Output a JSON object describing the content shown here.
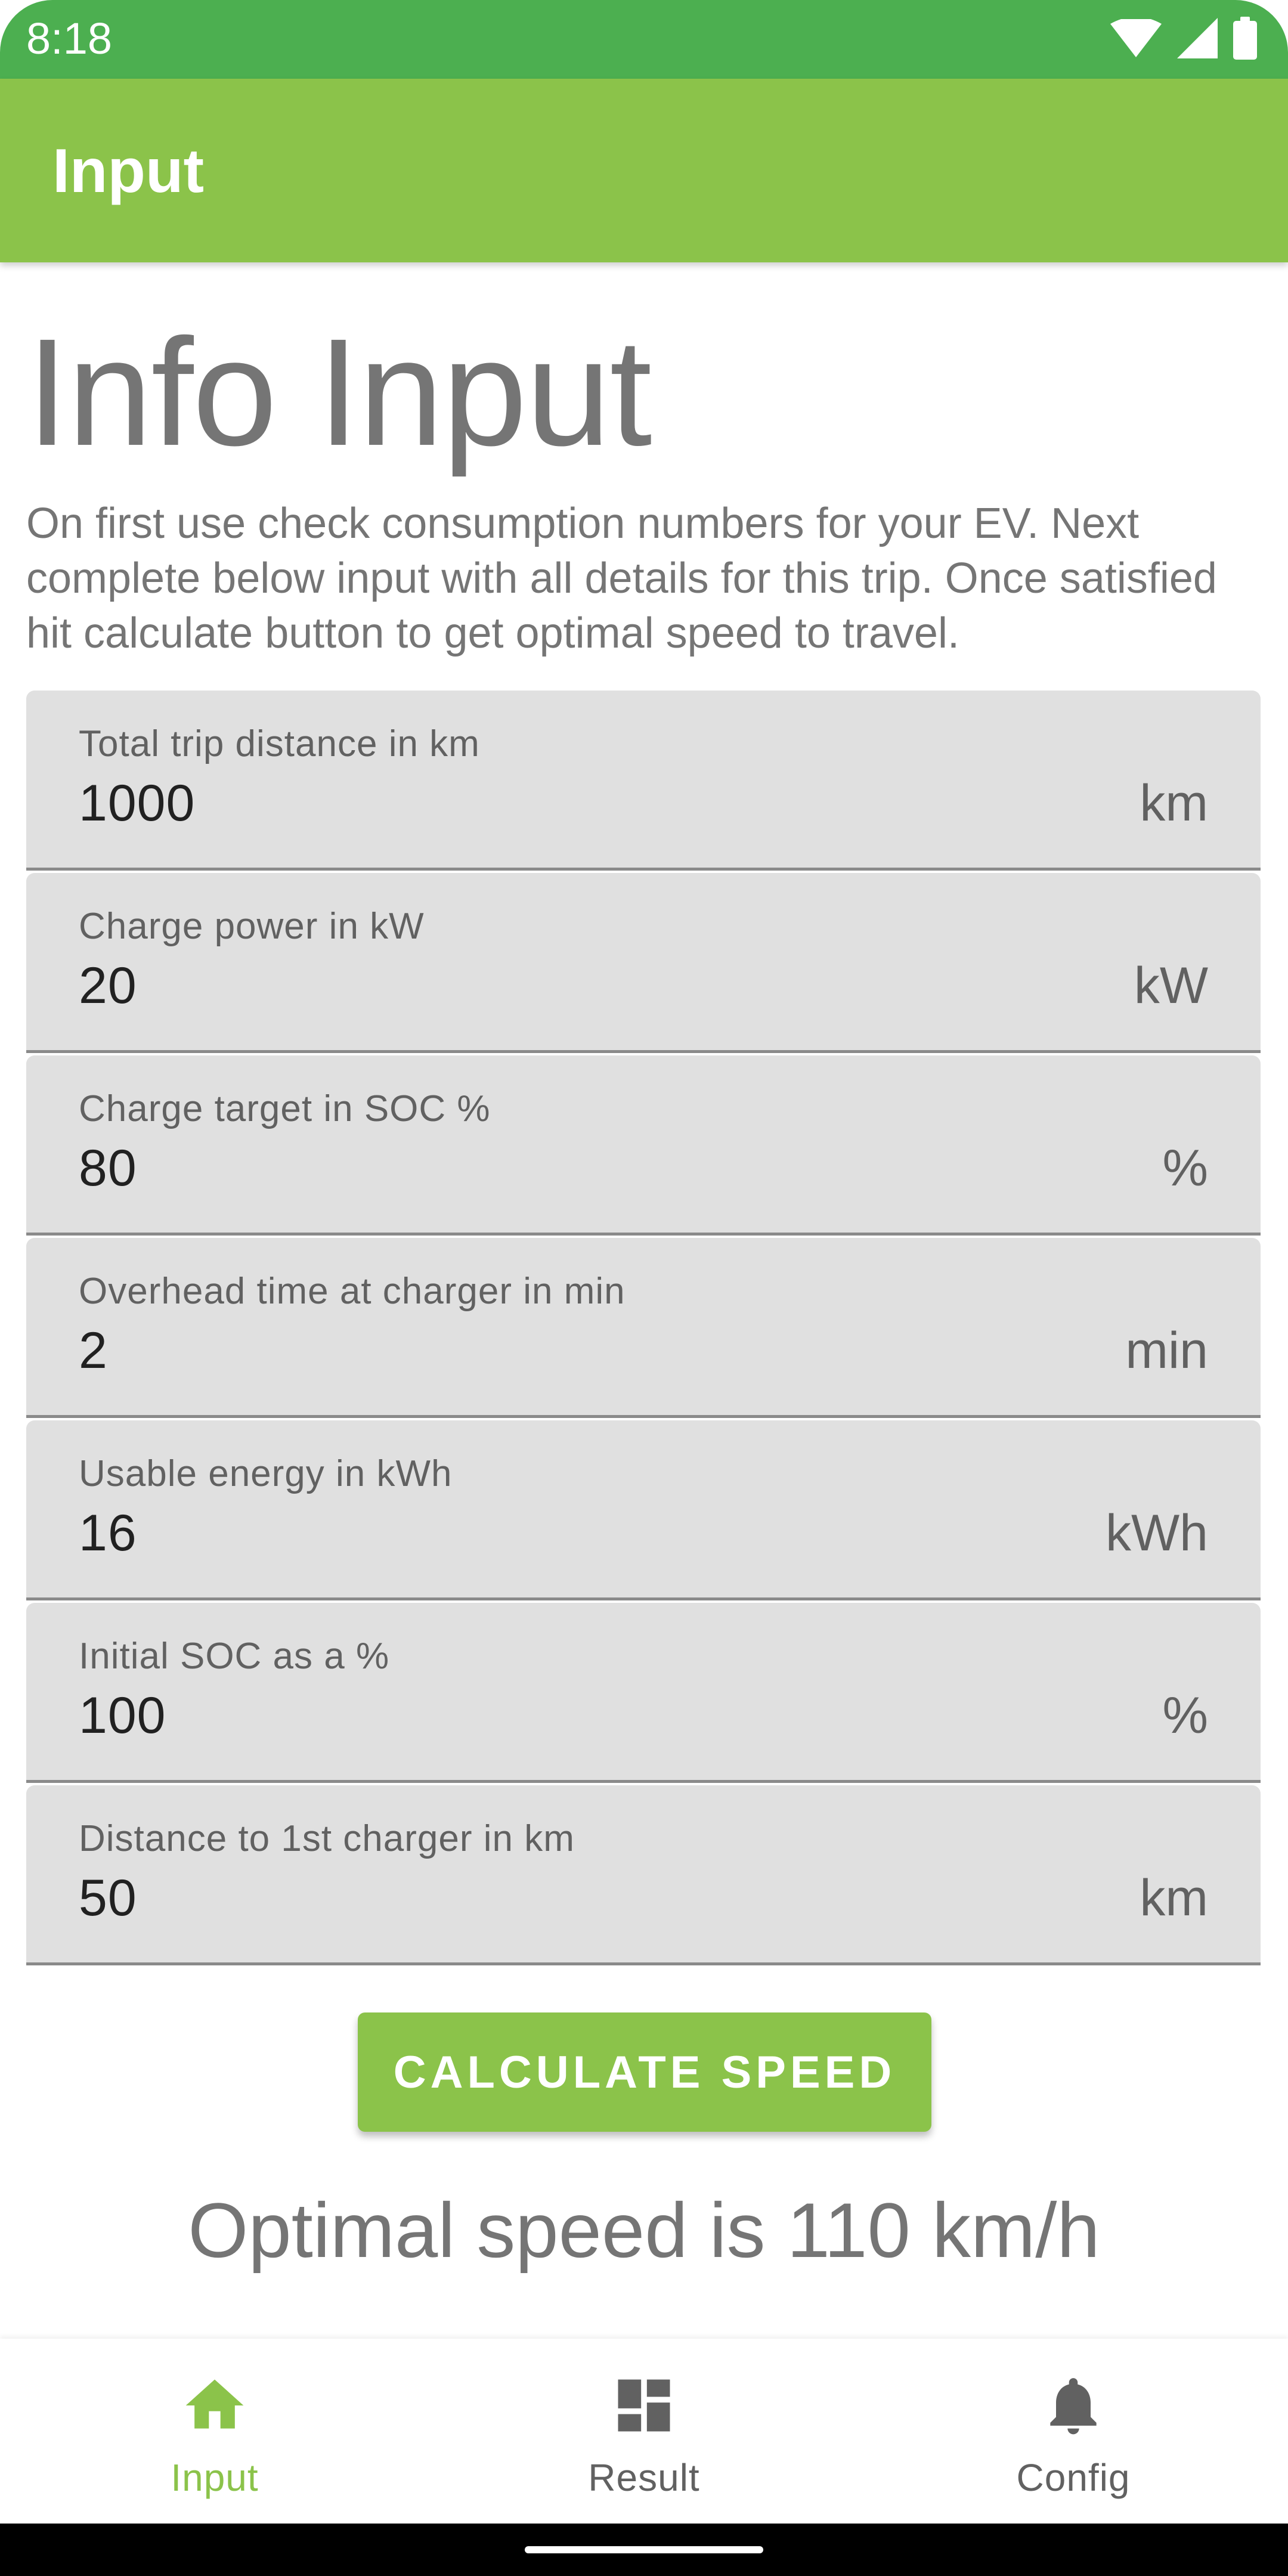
{
  "status_bar": {
    "time": "8:18"
  },
  "app_bar": {
    "title": "Input"
  },
  "page": {
    "heading": "Info Input",
    "intro": "On first use check consumption numbers for your EV. Next complete below input with all details for this trip. Once satisfied hit calculate button to get optimal speed to travel."
  },
  "fields": [
    {
      "label": "Total trip distance in km",
      "value": "1000",
      "unit": "km"
    },
    {
      "label": "Charge power in kW",
      "value": "20",
      "unit": "kW"
    },
    {
      "label": "Charge target in SOC %",
      "value": "80",
      "unit": "%"
    },
    {
      "label": "Overhead time at charger in min",
      "value": "2",
      "unit": "min"
    },
    {
      "label": "Usable energy in kWh",
      "value": "16",
      "unit": "kWh"
    },
    {
      "label": "Initial SOC as a %",
      "value": "100",
      "unit": "%"
    },
    {
      "label": "Distance to 1st charger in km",
      "value": "50",
      "unit": "km"
    }
  ],
  "calculate_button": "CALCULATE SPEED",
  "result": "Optimal speed is 110 km/h",
  "bottom_nav": [
    {
      "label": "Input",
      "icon": "home-icon",
      "active": true
    },
    {
      "label": "Result",
      "icon": "dashboard-icon",
      "active": false
    },
    {
      "label": "Config",
      "icon": "bell-icon",
      "active": false
    }
  ],
  "colors": {
    "status_bar": "#4caf50",
    "primary": "#8bc34a",
    "field_bg": "#e0e0e0",
    "text_secondary": "#757575"
  }
}
